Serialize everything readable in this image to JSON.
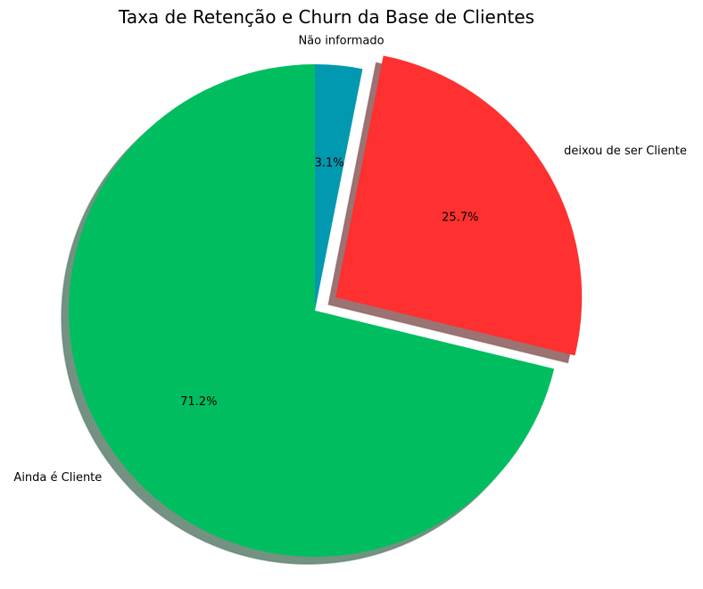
{
  "chart_data": {
    "type": "pie",
    "title": "Taxa de Retenção e Churn da Base de Clientes",
    "start_angle_deg": 90,
    "direction": "counterclockwise",
    "shadow": true,
    "slices": [
      {
        "label": "Ainda é Cliente",
        "value": 71.2,
        "pct_label": "71.2%",
        "color": "#00be5f",
        "exploded": false
      },
      {
        "label": "deixou de ser Cliente",
        "value": 25.7,
        "pct_label": "25.7%",
        "color": "#ff3030",
        "exploded": true
      },
      {
        "label": "Não informado",
        "value": 3.1,
        "pct_label": "3.1%",
        "color": "#0099b0",
        "exploded": false
      }
    ]
  }
}
